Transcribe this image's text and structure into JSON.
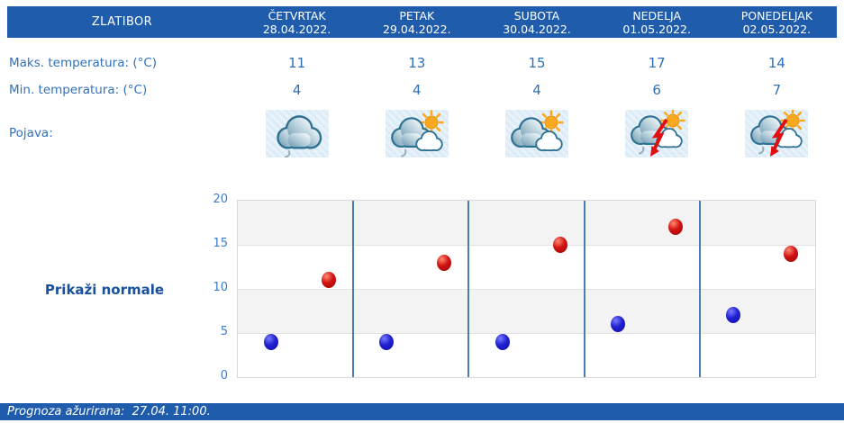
{
  "location": "ZLATIBOR",
  "days": [
    {
      "name": "ČETVRTAK",
      "date": "28.04.2022.",
      "max": 11,
      "min": 4,
      "icon": "cloudy"
    },
    {
      "name": "PETAK",
      "date": "29.04.2022.",
      "max": 13,
      "min": 4,
      "icon": "partly-cloudy-drizzle"
    },
    {
      "name": "SUBOTA",
      "date": "30.04.2022.",
      "max": 15,
      "min": 4,
      "icon": "partly-cloudy"
    },
    {
      "name": "NEDELJA",
      "date": "01.05.2022.",
      "max": 17,
      "min": 6,
      "icon": "thunderstorm"
    },
    {
      "name": "PONEDELJAK",
      "date": "02.05.2022.",
      "max": 14,
      "min": 7,
      "icon": "thunderstorm"
    }
  ],
  "rows": {
    "max_label": "Maks. temperatura: (°C)",
    "min_label": "Min. temperatura: (°C)",
    "phenomena_label": "Pojava:"
  },
  "links": {
    "show_normals": "Prikaži normale"
  },
  "footer": {
    "text": "Prognoza ažurirana:  27.04. 11:00."
  },
  "chart_data": {
    "type": "scatter",
    "categories": [
      "28.04.2022.",
      "29.04.2022.",
      "30.04.2022.",
      "01.05.2022.",
      "02.05.2022."
    ],
    "series": [
      {
        "name": "Min. temperatura (°C)",
        "color": "#2020CF",
        "values": [
          4,
          4,
          4,
          6,
          7
        ]
      },
      {
        "name": "Maks. temperatura (°C)",
        "color": "#D01212",
        "values": [
          11,
          13,
          15,
          17,
          14
        ]
      }
    ],
    "ylim": [
      0,
      20
    ],
    "yticks": [
      0,
      5,
      10,
      15,
      20
    ],
    "grid": true,
    "legend": "none",
    "band_colors": [
      "#F3F3F3",
      "#FFFFFF"
    ],
    "separator_color": "#4A7CB5"
  },
  "colors": {
    "header_bg": "#1F5CAB",
    "label_text": "#3071BE",
    "value_text": "#2F6FB8",
    "link_text": "#17509E",
    "footer_bg": "#1F5CAB"
  }
}
